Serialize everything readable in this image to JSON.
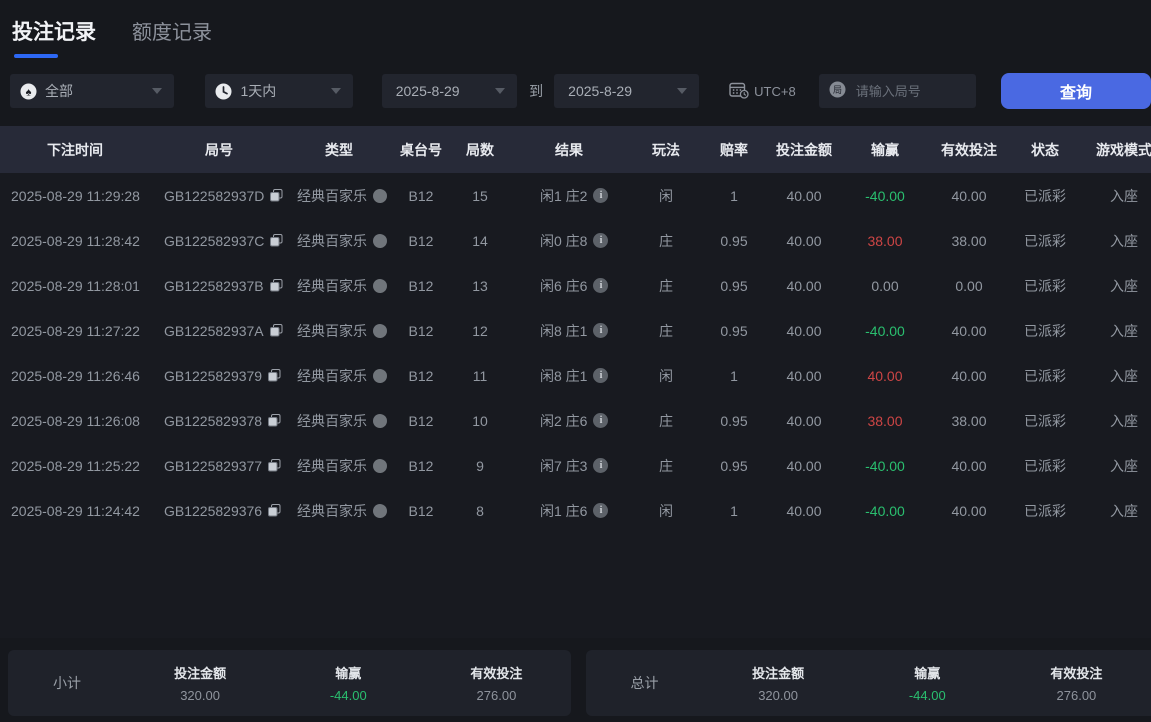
{
  "tabs": [
    {
      "label": "投注记录",
      "active": true
    },
    {
      "label": "额度记录",
      "active": false
    }
  ],
  "filters": {
    "game_type": "全部",
    "time_range": "1天内",
    "date_from": "2025-8-29",
    "to_label": "到",
    "date_to": "2025-8-29",
    "timezone": "UTC+8",
    "round_placeholder": "请输入局号",
    "round_icon_char": "局",
    "query_label": "查询"
  },
  "table": {
    "headers": [
      "下注时间",
      "局号",
      "类型",
      "桌台号",
      "局数",
      "结果",
      "玩法",
      "赔率",
      "投注金额",
      "输赢",
      "有效投注",
      "状态",
      "游戏模式"
    ],
    "rows": [
      {
        "time": "2025-08-29 11:29:28",
        "round_id": "GB122582937D",
        "type": "经典百家乐",
        "table_no": "B12",
        "round_no": "15",
        "result": "闲1 庄2",
        "play": "闲",
        "odds": "1",
        "bet": "40.00",
        "win_loss": "-40.00",
        "valid_bet": "40.00",
        "status": "已派彩",
        "mode": "入座"
      },
      {
        "time": "2025-08-29 11:28:42",
        "round_id": "GB122582937C",
        "type": "经典百家乐",
        "table_no": "B12",
        "round_no": "14",
        "result": "闲0 庄8",
        "play": "庄",
        "odds": "0.95",
        "bet": "40.00",
        "win_loss": "38.00",
        "valid_bet": "38.00",
        "status": "已派彩",
        "mode": "入座"
      },
      {
        "time": "2025-08-29 11:28:01",
        "round_id": "GB122582937B",
        "type": "经典百家乐",
        "table_no": "B12",
        "round_no": "13",
        "result": "闲6 庄6",
        "play": "庄",
        "odds": "0.95",
        "bet": "40.00",
        "win_loss": "0.00",
        "valid_bet": "0.00",
        "status": "已派彩",
        "mode": "入座"
      },
      {
        "time": "2025-08-29 11:27:22",
        "round_id": "GB122582937A",
        "type": "经典百家乐",
        "table_no": "B12",
        "round_no": "12",
        "result": "闲8 庄1",
        "play": "庄",
        "odds": "0.95",
        "bet": "40.00",
        "win_loss": "-40.00",
        "valid_bet": "40.00",
        "status": "已派彩",
        "mode": "入座"
      },
      {
        "time": "2025-08-29 11:26:46",
        "round_id": "GB1225829379",
        "type": "经典百家乐",
        "table_no": "B12",
        "round_no": "11",
        "result": "闲8 庄1",
        "play": "闲",
        "odds": "1",
        "bet": "40.00",
        "win_loss": "40.00",
        "valid_bet": "40.00",
        "status": "已派彩",
        "mode": "入座"
      },
      {
        "time": "2025-08-29 11:26:08",
        "round_id": "GB1225829378",
        "type": "经典百家乐",
        "table_no": "B12",
        "round_no": "10",
        "result": "闲2 庄6",
        "play": "庄",
        "odds": "0.95",
        "bet": "40.00",
        "win_loss": "38.00",
        "valid_bet": "38.00",
        "status": "已派彩",
        "mode": "入座"
      },
      {
        "time": "2025-08-29 11:25:22",
        "round_id": "GB1225829377",
        "type": "经典百家乐",
        "table_no": "B12",
        "round_no": "9",
        "result": "闲7 庄3",
        "play": "庄",
        "odds": "0.95",
        "bet": "40.00",
        "win_loss": "-40.00",
        "valid_bet": "40.00",
        "status": "已派彩",
        "mode": "入座"
      },
      {
        "time": "2025-08-29 11:24:42",
        "round_id": "GB1225829376",
        "type": "经典百家乐",
        "table_no": "B12",
        "round_no": "8",
        "result": "闲1 庄6",
        "play": "闲",
        "odds": "1",
        "bet": "40.00",
        "win_loss": "-40.00",
        "valid_bet": "40.00",
        "status": "已派彩",
        "mode": "入座"
      }
    ]
  },
  "summary": {
    "labels": {
      "bet": "投注金额",
      "win_loss": "输赢",
      "valid": "有效投注"
    },
    "subtotal": {
      "label": "小计",
      "bet": "320.00",
      "win_loss": "-44.00",
      "valid": "276.00"
    },
    "total": {
      "label": "总计",
      "bet": "320.00",
      "win_loss": "-44.00",
      "valid": "276.00"
    }
  },
  "colors": {
    "accent_blue": "#4a69e2",
    "tab_underline": "#2d68f5",
    "win_red": "#cd4545",
    "loss_green": "#2abf6f",
    "header_bg": "#272a38",
    "page_bg": "#16181d"
  }
}
